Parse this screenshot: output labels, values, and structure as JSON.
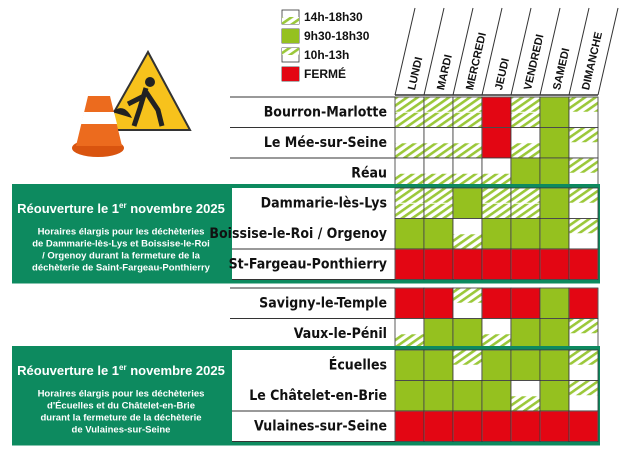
{
  "legend": [
    {
      "label": "14h-18h30"
    },
    {
      "label": "9h30-18h30"
    },
    {
      "label": "10h-13h"
    },
    {
      "label": "FERMÉ"
    }
  ],
  "days": [
    "LUNDI",
    "MARDI",
    "MERCREDI",
    "JEUDI",
    "VENDREDI",
    "SAMEDI",
    "DIMANCHE"
  ],
  "groups": [
    {
      "rows": [
        {
          "name": "Bourron-Marlotte",
          "cells": [
            [
              0,
              2
            ],
            [
              0,
              2
            ],
            [
              0,
              2
            ],
            [
              3
            ],
            [
              0,
              2
            ],
            [
              1
            ],
            [
              2
            ]
          ]
        },
        {
          "name": "Le Mée-sur-Seine",
          "cells": [
            [
              0
            ],
            [
              0
            ],
            [
              0
            ],
            [
              3
            ],
            [
              0
            ],
            [
              1
            ],
            [
              2
            ]
          ]
        },
        {
          "name": "Réau",
          "cells": [
            [
              0
            ],
            [
              0
            ],
            [
              0
            ],
            [
              0
            ],
            [
              1
            ],
            [
              1
            ],
            [
              2
            ]
          ]
        }
      ]
    },
    {
      "panel": {
        "title": "Réouverture le 1",
        "sup": "er",
        "title_end": " novembre 2025",
        "lines": [
          "Horaires élargis pour les déchèteries",
          "de Dammarie-lès-Lys et Boissise-le-Roi",
          "/ Orgenoy durant la fermeture de la",
          "déchèterie de Saint-Fargeau-Ponthierry"
        ]
      },
      "rows": [
        {
          "name": "Dammarie-lès-Lys",
          "cells": [
            [
              0,
              2
            ],
            [
              0,
              2
            ],
            [
              1
            ],
            [
              0,
              2
            ],
            [
              0,
              2
            ],
            [
              1
            ],
            [
              2
            ]
          ]
        },
        {
          "name": "Boissise-le-Roi / Orgenoy",
          "cells": [
            [
              1
            ],
            [
              1
            ],
            [
              0
            ],
            [
              1
            ],
            [
              1
            ],
            [
              1
            ],
            [
              2
            ]
          ]
        },
        {
          "name": "St-Fargeau-Ponthierry",
          "cells": [
            [
              3
            ],
            [
              3
            ],
            [
              3
            ],
            [
              3
            ],
            [
              3
            ],
            [
              3
            ],
            [
              3
            ]
          ]
        }
      ]
    },
    {
      "rows": [
        {
          "name": "Savigny-le-Temple",
          "cells": [
            [
              3
            ],
            [
              3
            ],
            [
              2
            ],
            [
              3
            ],
            [
              3
            ],
            [
              1
            ],
            [
              3
            ]
          ]
        },
        {
          "name": "Vaux-le-Pénil",
          "cells": [
            [
              0
            ],
            [
              1
            ],
            [
              1
            ],
            [
              0
            ],
            [
              1
            ],
            [
              1
            ],
            [
              2
            ]
          ]
        }
      ]
    },
    {
      "panel": {
        "title": "Réouverture le 1",
        "sup": "er",
        "title_end": " novembre 2025",
        "lines": [
          "Horaires élargis pour les déchèteries",
          "d'Écuelles et du Châtelet-en-Brie",
          "durant la fermeture de la déchèterie",
          "de Vulaines-sur-Seine"
        ]
      },
      "rows": [
        {
          "name": "Écuelles",
          "cells": [
            [
              1
            ],
            [
              1
            ],
            [
              2
            ],
            [
              1
            ],
            [
              1
            ],
            [
              1
            ],
            [
              2
            ]
          ]
        },
        {
          "name": "Le Châtelet-en-Brie",
          "cells": [
            [
              1
            ],
            [
              1
            ],
            [
              1
            ],
            [
              1
            ],
            [
              0
            ],
            [
              1
            ],
            [
              2
            ]
          ]
        },
        {
          "name": "Vulaines-sur-Seine",
          "cells": [
            [
              3
            ],
            [
              3
            ],
            [
              3
            ],
            [
              3
            ],
            [
              3
            ],
            [
              3
            ],
            [
              3
            ]
          ]
        }
      ]
    }
  ]
}
